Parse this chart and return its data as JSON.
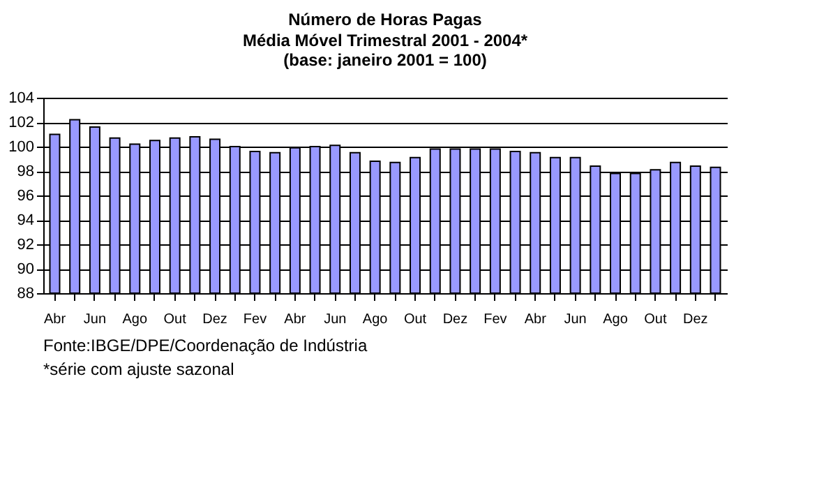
{
  "chart_data": {
    "type": "bar",
    "title": "Número de Horas Pagas",
    "subtitle": "Média Móvel Trimestral  2001 - 2004*\n(base: janeiro 2001 = 100)",
    "categories": [
      "Abr",
      null,
      "Jun",
      null,
      "Ago",
      null,
      "Out",
      null,
      "Dez",
      null,
      "Fev",
      null,
      "Abr",
      null,
      "Jun",
      null,
      "Ago",
      null,
      "Out",
      null,
      "Dez",
      null,
      "Fev",
      null,
      "Abr",
      null,
      "Jun",
      null,
      "Ago",
      null,
      "Out",
      null,
      "Dez",
      null
    ],
    "values": [
      101.0,
      102.2,
      101.6,
      100.7,
      100.2,
      100.5,
      100.7,
      100.8,
      100.6,
      100.0,
      99.6,
      99.5,
      99.9,
      100.0,
      100.1,
      99.5,
      98.8,
      98.7,
      99.1,
      99.8,
      99.8,
      99.8,
      99.8,
      99.6,
      99.5,
      99.1,
      99.1,
      98.4,
      97.8,
      97.8,
      98.1,
      98.7,
      98.4,
      98.3
    ],
    "color": "#9999ff",
    "ylim": [
      88,
      104
    ],
    "yticks": [
      88,
      90,
      92,
      94,
      96,
      98,
      100,
      102,
      104
    ],
    "grid": "y",
    "annotations": [
      "Fonte:IBGE/DPE/Coordenação de Indústria",
      "*série com ajuste sazonal"
    ]
  }
}
